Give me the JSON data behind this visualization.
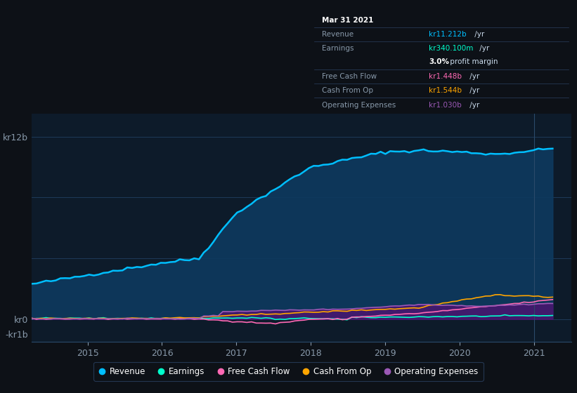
{
  "bg_color": "#0d1117",
  "plot_bg_color": "#0d1b2a",
  "grid_color": "#1e3a5a",
  "x_tick_labels": [
    "2015",
    "2016",
    "2017",
    "2018",
    "2019",
    "2020",
    "2021"
  ],
  "legend_items": [
    {
      "label": "Revenue",
      "color": "#00bfff"
    },
    {
      "label": "Earnings",
      "color": "#00ffcc"
    },
    {
      "label": "Free Cash Flow",
      "color": "#ff69b4"
    },
    {
      "label": "Cash From Op",
      "color": "#ffa500"
    },
    {
      "label": "Operating Expenses",
      "color": "#9b59b6"
    }
  ],
  "revenue_color": "#00bfff",
  "revenue_fill": "#0d3a5f",
  "earnings_color": "#00ffcc",
  "fcf_color": "#ff69b4",
  "cashop_color": "#ffa500",
  "opex_color": "#9b59b6",
  "opex_fill": "#4a1570",
  "tooltip_rows": [
    {
      "label": "Mar 31 2021",
      "value": "",
      "value_color": "white",
      "label_color": "white",
      "bold": true
    },
    {
      "label": "Revenue",
      "value": "kr11.212b /yr",
      "value_color": "#00bfff",
      "label_color": "#8899aa",
      "bold": false
    },
    {
      "label": "Earnings",
      "value": "kr340.100m /yr",
      "value_color": "#00ffcc",
      "label_color": "#8899aa",
      "bold": false
    },
    {
      "label": "",
      "value": "3.0% profit margin",
      "value_color": "white",
      "label_color": "#8899aa",
      "bold": false
    },
    {
      "label": "Free Cash Flow",
      "value": "kr1.448b /yr",
      "value_color": "#ff69b4",
      "label_color": "#8899aa",
      "bold": false
    },
    {
      "label": "Cash From Op",
      "value": "kr1.544b /yr",
      "value_color": "#ffa500",
      "label_color": "#8899aa",
      "bold": false
    },
    {
      "label": "Operating Expenses",
      "value": "kr1.030b /yr",
      "value_color": "#9b59b6",
      "label_color": "#8899aa",
      "bold": false
    }
  ]
}
